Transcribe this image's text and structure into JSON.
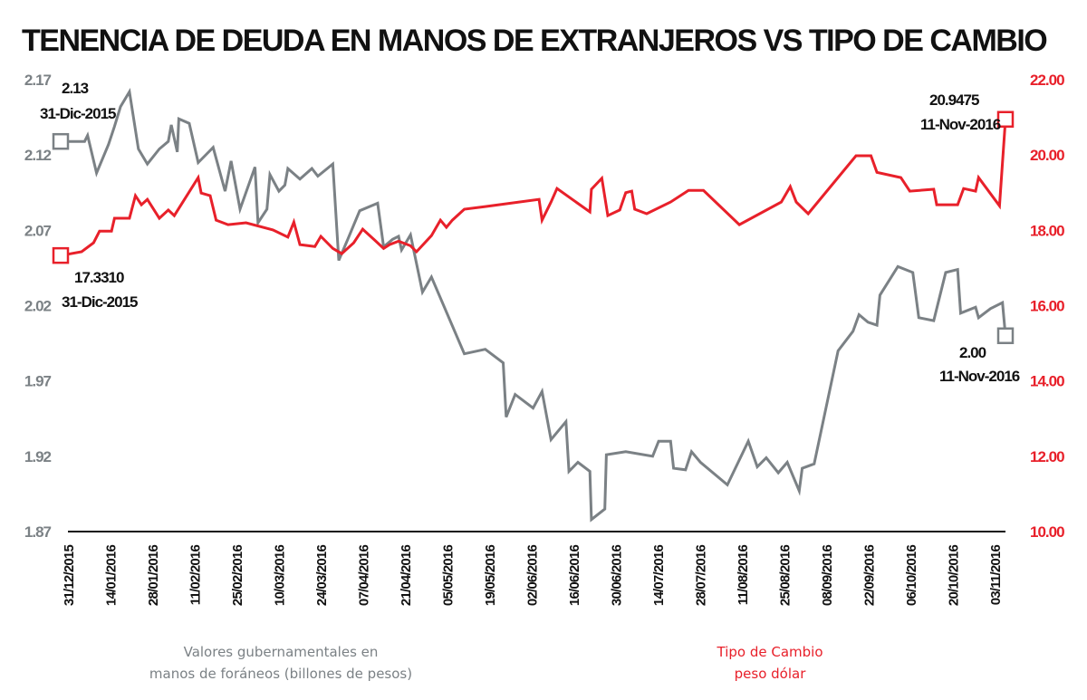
{
  "chart_data": {
    "type": "line",
    "title": "TENENCIA DE DEUDA EN MANOS DE EXTRANJEROS VS TIPO DE CAMBIO",
    "x_start_date": "31/12/2015",
    "x_unit": "days since 31/12/2015",
    "x_tick_labels": [
      "31/12/2015",
      "14/01/2016",
      "28/01/2016",
      "11/02/2016",
      "25/02/2016",
      "10/03/2016",
      "24/03/2016",
      "07/04/2016",
      "21/04/2016",
      "05/05/2016",
      "19/05/2016",
      "02/06/2016",
      "16/06/2016",
      "30/06/2016",
      "14/07/2016",
      "28/07/2016",
      "11/08/2016",
      "25/08/2016",
      "08/09/2016",
      "22/09/2016",
      "06/10/2016",
      "20/10/2016",
      "03/11/2016"
    ],
    "x_tick_days": [
      0,
      14,
      28,
      42,
      56,
      70,
      84,
      98,
      112,
      126,
      140,
      154,
      168,
      182,
      196,
      210,
      224,
      238,
      252,
      266,
      280,
      294,
      308
    ],
    "x_range": [
      0,
      316
    ],
    "left_axis": {
      "label": "Valores gubernamentales en manos de foráneos (billones de pesos)",
      "ticks": [
        "2.17",
        "2.12",
        "2.07",
        "2.02",
        "1.97",
        "1.92",
        "1.87"
      ],
      "tick_values": [
        2.17,
        2.12,
        2.07,
        2.02,
        1.97,
        1.92,
        1.87
      ],
      "range": [
        1.87,
        2.17
      ],
      "color": "#7b8185"
    },
    "right_axis": {
      "label": "Tipo de Cambio peso dólar",
      "ticks": [
        "22.00",
        "20.00",
        "18.00",
        "16.00",
        "14.00",
        "12.00",
        "10.00"
      ],
      "tick_values": [
        22,
        20,
        18,
        16,
        14,
        12,
        10
      ],
      "range": [
        10,
        22
      ],
      "color": "#e8202a"
    },
    "series": [
      {
        "name": "Valores gubernamentales en manos de foráneos (billones de pesos)",
        "axis": "left",
        "color": "#7b8185",
        "x": [
          0,
          4,
          8,
          9,
          12,
          16,
          18,
          20,
          23,
          26,
          29,
          33,
          36,
          37,
          39,
          39.5,
          43,
          46,
          49,
          51,
          55,
          57,
          60,
          65,
          66,
          69,
          70,
          73,
          75,
          76,
          80,
          84,
          86,
          91,
          93,
          96,
          100,
          106,
          108,
          111,
          113,
          114,
          117,
          119,
          121,
          124,
          135,
          142,
          148,
          149,
          152,
          158,
          161,
          164,
          169,
          170,
          173,
          177,
          177.5,
          182,
          182.5,
          189,
          198,
          200,
          204,
          205,
          209,
          211,
          214,
          223,
          230,
          233,
          236,
          240,
          243,
          247,
          248,
          252,
          260,
          265,
          267,
          270,
          273,
          274,
          280,
          285,
          287,
          292,
          296,
          300,
          301,
          306,
          307,
          311,
          315,
          316
        ],
        "values": [
          2.129,
          2.129,
          2.129,
          2.133,
          2.108,
          2.127,
          2.139,
          2.152,
          2.162,
          2.124,
          2.114,
          2.124,
          2.129,
          2.14,
          2.122,
          2.144,
          2.141,
          2.115,
          2.121,
          2.125,
          2.096,
          2.116,
          2.084,
          2.112,
          2.075,
          2.084,
          2.107,
          2.096,
          2.1,
          2.111,
          2.104,
          2.111,
          2.106,
          2.114,
          2.05,
          2.064,
          2.083,
          2.088,
          2.059,
          2.064,
          2.066,
          2.057,
          2.067,
          2.048,
          2.029,
          2.039,
          1.988,
          1.991,
          1.982,
          1.946,
          1.961,
          1.952,
          1.963,
          1.931,
          1.943,
          1.91,
          1.916,
          1.91,
          1.878,
          1.885,
          1.921,
          1.923,
          1.92,
          1.93,
          1.93,
          1.912,
          1.911,
          1.923,
          1.916,
          1.901,
          1.93,
          1.913,
          1.919,
          1.909,
          1.916,
          1.897,
          1.912,
          1.915,
          1.99,
          2.003,
          2.014,
          2.009,
          2.007,
          2.027,
          2.046,
          2.042,
          2.012,
          2.01,
          2.042,
          2.044,
          2.015,
          2.019,
          2.012,
          2.018,
          2.022,
          2.0
        ]
      },
      {
        "name": "Tipo de Cambio peso dólar",
        "axis": "right",
        "color": "#e8202a",
        "x": [
          0,
          7,
          11,
          13,
          17,
          18,
          23,
          25,
          27,
          29,
          33,
          36,
          38,
          46,
          47,
          50,
          52,
          56,
          62,
          71,
          76,
          78,
          80,
          85,
          87,
          91,
          94,
          98,
          101,
          105,
          108,
          110,
          113,
          117,
          119,
          124,
          127,
          129,
          131,
          135,
          142,
          160,
          161,
          164,
          166,
          177,
          177.5,
          181,
          183,
          187,
          189,
          191,
          192,
          196,
          204,
          210,
          215,
          227,
          241,
          244,
          246,
          250,
          266,
          271,
          273,
          281,
          284,
          292,
          293,
          300,
          302,
          306,
          307,
          314,
          316
        ],
        "values": [
          17.331,
          17.43,
          17.67,
          17.98,
          17.98,
          18.32,
          18.32,
          18.92,
          18.68,
          18.82,
          18.32,
          18.54,
          18.39,
          19.4,
          18.99,
          18.92,
          18.27,
          18.15,
          18.2,
          18.01,
          17.82,
          18.22,
          17.62,
          17.57,
          17.84,
          17.52,
          17.38,
          17.67,
          18.03,
          17.74,
          17.52,
          17.62,
          17.71,
          17.59,
          17.43,
          17.86,
          18.27,
          18.08,
          18.27,
          18.56,
          18.63,
          18.82,
          18.27,
          18.75,
          19.11,
          18.49,
          19.09,
          19.38,
          18.39,
          18.54,
          19.0,
          19.04,
          18.56,
          18.44,
          18.75,
          19.06,
          19.06,
          18.15,
          18.75,
          19.16,
          18.75,
          18.44,
          19.98,
          19.98,
          19.54,
          19.4,
          19.04,
          19.09,
          18.68,
          18.68,
          19.11,
          19.04,
          19.4,
          18.65,
          20.9475
        ]
      }
    ],
    "annotations": {
      "gray_start": {
        "value": "2.13",
        "date": "31-Dic-2015"
      },
      "red_start": {
        "value": "17.3310",
        "date": "31-Dic-2015"
      },
      "red_end": {
        "value": "20.9475",
        "date": "11-Nov-2016"
      },
      "gray_end": {
        "value": "2.00",
        "date": "11-Nov-2016"
      }
    },
    "legend": {
      "left_line1": "Valores gubernamentales en",
      "left_line2": "manos de foráneos (billones de pesos)",
      "right_line1": "Tipo de Cambio",
      "right_line2": "peso dólar",
      "placement": "bottom"
    },
    "grid": false
  }
}
